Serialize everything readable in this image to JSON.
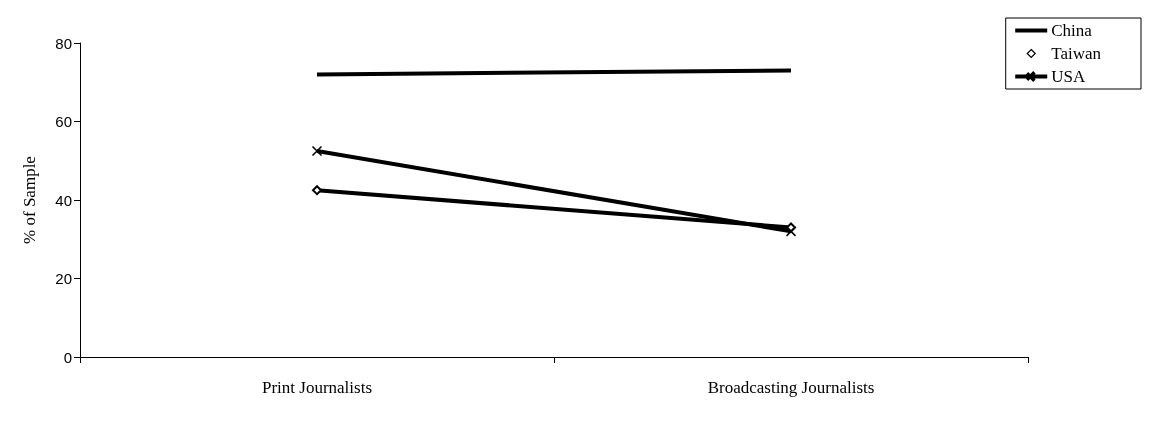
{
  "chart_data": {
    "type": "line",
    "ylabel": "% of Sample",
    "categories": [
      "Print Journalists",
      "Broadcasting Journalists"
    ],
    "series": [
      {
        "name": "China",
        "color": "#000000",
        "values": [
          72,
          73
        ],
        "marker": "none"
      },
      {
        "name": "Taiwan",
        "color": "#000000",
        "values": [
          42.5,
          33
        ],
        "marker": "diamond"
      },
      {
        "name": "USA",
        "color": "#000000",
        "values": [
          52.5,
          32
        ],
        "marker": "cross"
      }
    ],
    "ylim": [
      0,
      80
    ],
    "yticks": [
      0,
      20,
      40,
      60,
      80
    ],
    "grid": false,
    "legend": "top right"
  }
}
